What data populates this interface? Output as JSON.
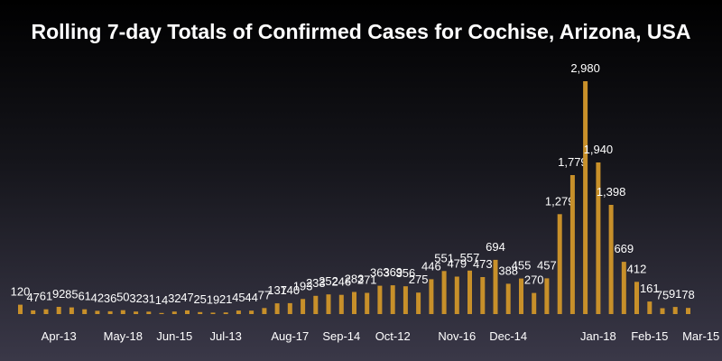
{
  "chart_data": {
    "type": "bar",
    "title": "Rolling 7-day Totals of Confirmed Cases for Cochise, Arizona, USA",
    "xlabel": "",
    "ylabel": "",
    "ylim": [
      0,
      3100
    ],
    "bar_color": "#c8902a",
    "label_color": "#ffffff",
    "tick_labels": [
      "Apr-13",
      "May-18",
      "Jun-15",
      "Jul-13",
      "Aug-17",
      "Sep-14",
      "Oct-12",
      "Nov-16",
      "Dec-14",
      "Jan-18",
      "Feb-15",
      "Mar-15"
    ],
    "tick_indices": [
      3,
      8,
      12,
      16,
      21,
      25,
      29,
      34,
      38,
      45,
      49,
      53
    ],
    "values": [
      120,
      47,
      61,
      92,
      85,
      61,
      42,
      36,
      50,
      32,
      31,
      14,
      32,
      47,
      25,
      19,
      21,
      45,
      44,
      77,
      137,
      140,
      193,
      233,
      252,
      246,
      283,
      271,
      363,
      369,
      356,
      275,
      446,
      551,
      479,
      557,
      473,
      694,
      388,
      455,
      270,
      457,
      1279,
      1779,
      2980,
      1940,
      1398,
      669,
      412,
      161,
      75,
      91,
      78
    ],
    "value_labels": [
      "120",
      "47",
      "61",
      "92",
      "85",
      "61",
      "42",
      "36",
      "50",
      "32",
      "31",
      "14",
      "32",
      "47",
      "25",
      "19",
      "21",
      "45",
      "44",
      "77",
      "137",
      "140",
      "193",
      "233",
      "252",
      "246",
      "283",
      "271",
      "363",
      "369",
      "356",
      "275",
      "446",
      "551",
      "479",
      "557",
      "473",
      "694",
      "388",
      "455",
      "270",
      "457",
      "1,279",
      "1,779",
      "2,980",
      "1,940",
      "1,398",
      "669",
      "412",
      "161",
      "75",
      "91",
      "78"
    ]
  }
}
